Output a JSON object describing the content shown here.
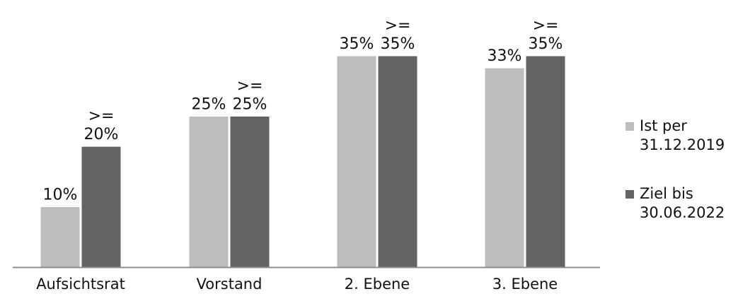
{
  "chart_data": {
    "type": "bar",
    "categories": [
      "Aufsichtsrat",
      "Vorstand",
      "2. Ebene",
      "3. Ebene"
    ],
    "series": [
      {
        "name": "Ist per 31.12.2019",
        "legend_lines": [
          "Ist per",
          "31.12.2019"
        ],
        "color": "#bdbdbd",
        "values": [
          10,
          25,
          35,
          33
        ],
        "labels": [
          [
            "10%"
          ],
          [
            "25%"
          ],
          [
            "35%"
          ],
          [
            "33%"
          ]
        ]
      },
      {
        "name": "Ziel bis 30.06.2022",
        "legend_lines": [
          "Ziel bis",
          "30.06.2022"
        ],
        "color": "#636363",
        "values": [
          20,
          25,
          35,
          35
        ],
        "labels": [
          [
            ">=",
            "20%"
          ],
          [
            ">=",
            "25%"
          ],
          [
            ">=",
            "35%"
          ],
          [
            ">=",
            "35%"
          ]
        ]
      }
    ],
    "ylim": [
      0,
      35
    ],
    "grid": false,
    "legend_position": "right",
    "axis_color": "#8c8c8c"
  }
}
